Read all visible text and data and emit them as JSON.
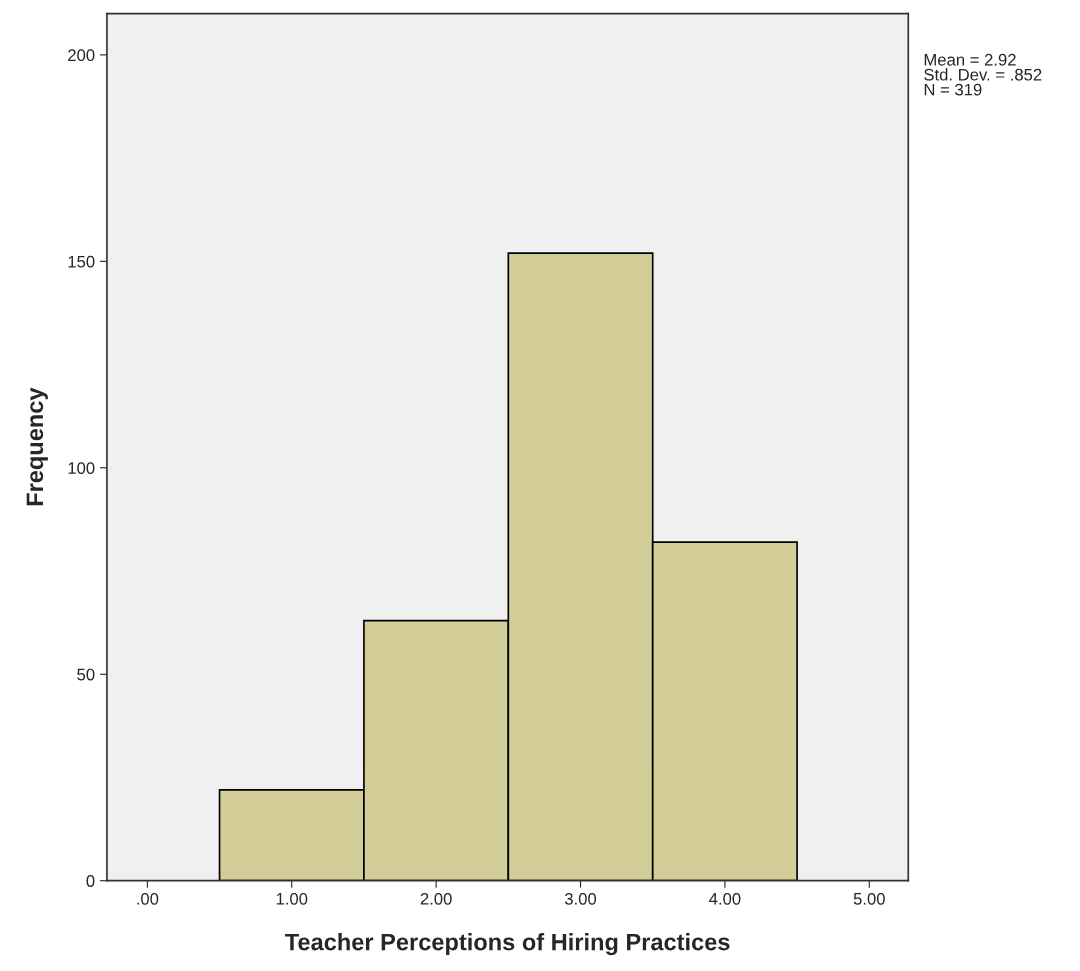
{
  "chart_data": {
    "type": "histogram",
    "xlabel": "Teacher Perceptions of Hiring Practices",
    "ylabel": "Frequency",
    "bins": [
      0.5,
      1.5,
      2.5,
      3.5,
      4.5
    ],
    "values": [
      22,
      63,
      152,
      82
    ],
    "color": "#d3cd98",
    "xlim": [
      -0.28,
      5.27
    ],
    "ylim": [
      0,
      210
    ],
    "xticks": [
      {
        "value": 0,
        "label": ".00"
      },
      {
        "value": 1,
        "label": "1.00"
      },
      {
        "value": 2,
        "label": "2.00"
      },
      {
        "value": 3,
        "label": "3.00"
      },
      {
        "value": 4,
        "label": "4.00"
      },
      {
        "value": 5,
        "label": "5.00"
      }
    ],
    "yticks": [
      0,
      50,
      100,
      150,
      200
    ],
    "grid": false,
    "annotations": [
      "Mean = 2.92\nStd. Dev. = .852\nN = 319"
    ]
  }
}
